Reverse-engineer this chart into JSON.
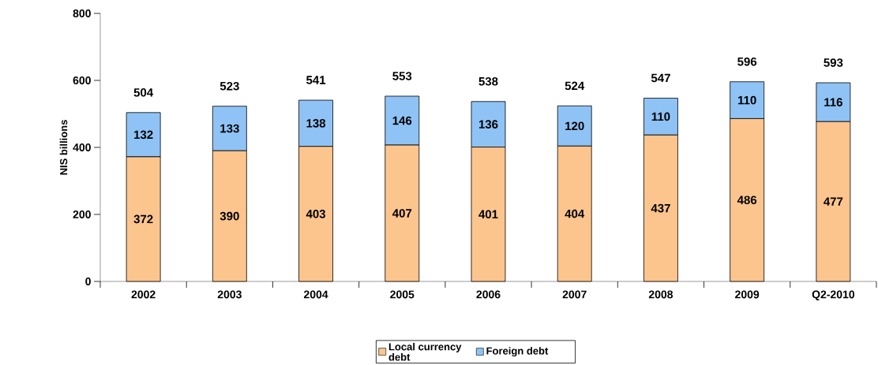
{
  "chart_data": {
    "type": "bar",
    "stacked": true,
    "ylabel": "NIS billions",
    "categories": [
      "2002",
      "2003",
      "2004",
      "2005",
      "2006",
      "2007",
      "2008",
      "2009",
      "Q2-2010"
    ],
    "series": [
      {
        "name": "Local currency debt",
        "color": "#fcc58e",
        "values": [
          372,
          390,
          403,
          407,
          401,
          404,
          437,
          486,
          477
        ]
      },
      {
        "name": "Foreign debt",
        "color": "#8fc3f5",
        "values": [
          132,
          133,
          138,
          146,
          136,
          120,
          110,
          110,
          116
        ]
      }
    ],
    "totals": [
      "504",
      "523",
      "541",
      "553",
      "538",
      "524",
      "547",
      "596",
      "593"
    ],
    "ylim": [
      0,
      800
    ],
    "yticks": [
      0,
      200,
      400,
      600,
      800
    ],
    "data_labels": true,
    "legend": "bottom",
    "grid": false
  }
}
